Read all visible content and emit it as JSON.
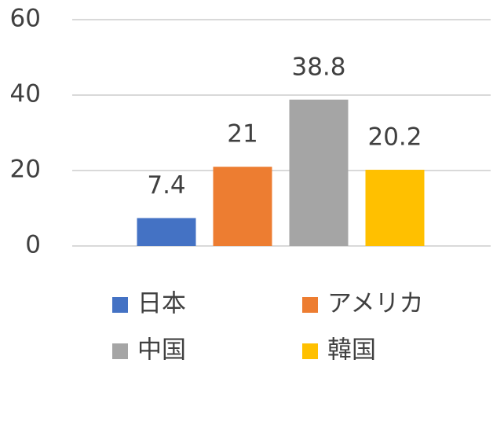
{
  "chart_data": {
    "type": "bar",
    "series": [
      {
        "name": "日本",
        "color": "#4472c4",
        "values": [
          7.4
        ]
      },
      {
        "name": "アメリカ",
        "color": "#ed7d31",
        "values": [
          21
        ]
      },
      {
        "name": "中国",
        "color": "#a5a5a5",
        "values": [
          38.8
        ]
      },
      {
        "name": "韓国",
        "color": "#ffc000",
        "values": [
          20.2
        ]
      }
    ],
    "ylim": [
      0,
      60
    ],
    "yticks": [
      0,
      20,
      40,
      60
    ],
    "grid": true,
    "data_labels": true,
    "legend": "bottom"
  }
}
